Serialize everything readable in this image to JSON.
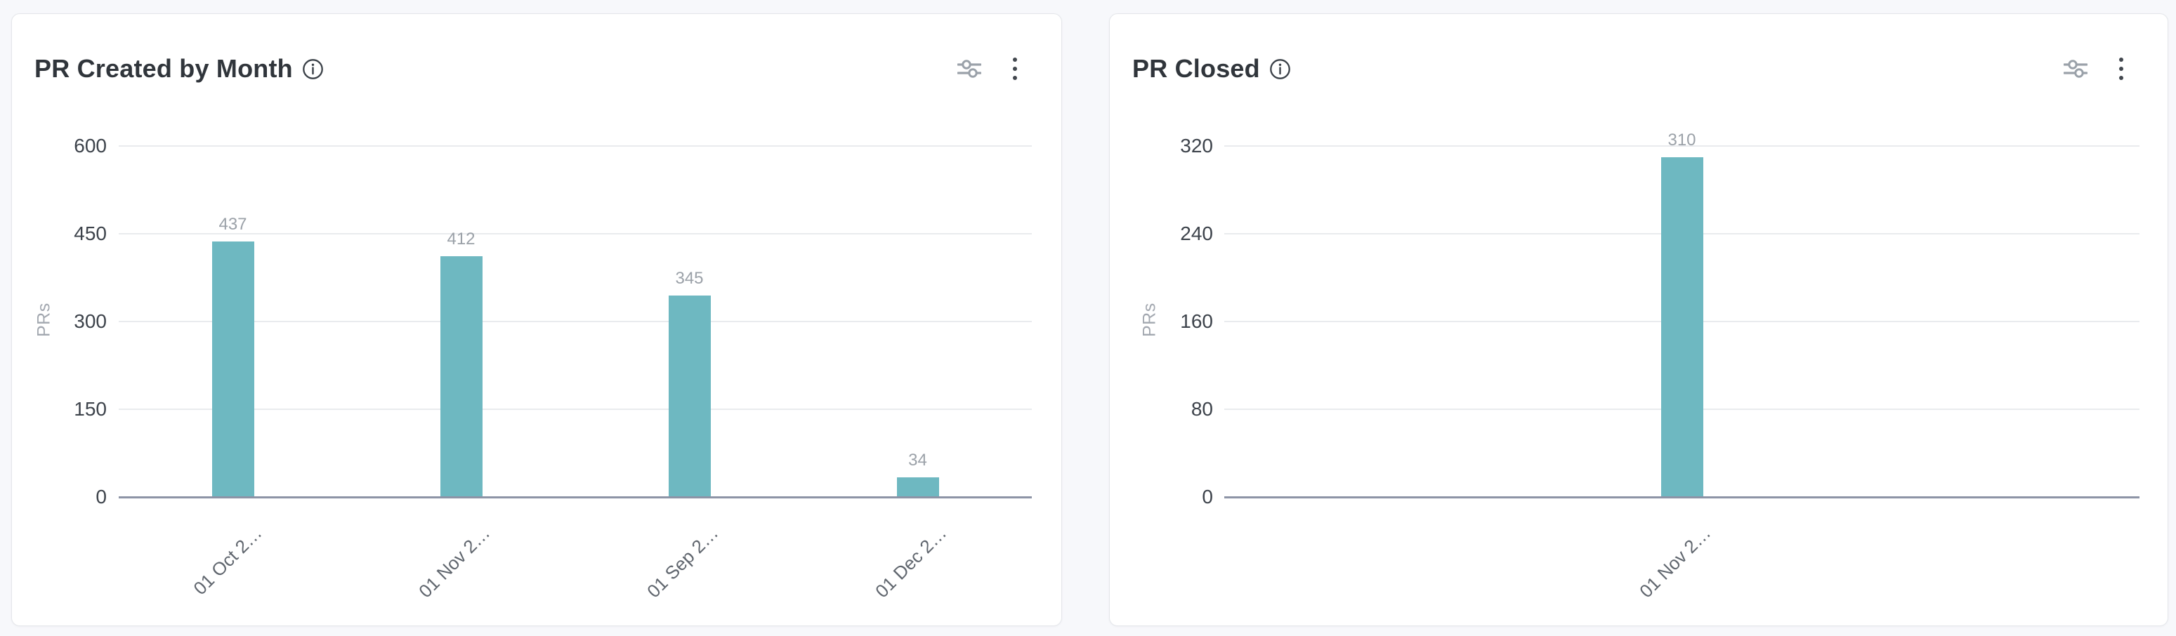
{
  "page": {
    "background": "#f7f8fb"
  },
  "colors": {
    "bar": "#6eb8c1",
    "axis_line": "#8d94a6",
    "gridline": "#e9ebee",
    "tick_label": "#3d434b",
    "value_label": "#9ba1a8",
    "category_label": "#60666e",
    "axis_title": "#a3a8b0",
    "icon_gray": "#9aa1a9",
    "icon_dark": "#42474e"
  },
  "panels": [
    {
      "name": "pr-created-by-month",
      "icons": {
        "info": "info-icon",
        "filter": "filter-sliders-icon",
        "menu": "kebab-menu-icon"
      }
    },
    {
      "name": "pr-closed",
      "icons": {
        "info": "info-icon",
        "filter": "filter-sliders-icon",
        "menu": "kebab-menu-icon"
      }
    }
  ],
  "chart_data": [
    {
      "type": "bar",
      "title": "PR Created by Month",
      "categories": [
        "01 Oct 2…",
        "01 Nov 2…",
        "01 Sep 2…",
        "01 Dec 2…"
      ],
      "values": [
        437,
        412,
        345,
        34
      ],
      "value_labels": [
        "437",
        "412",
        "345",
        "34"
      ],
      "xlabel": "",
      "ylabel": "PRs",
      "ylim": [
        0,
        600
      ],
      "yticks": [
        600,
        450,
        300,
        150,
        0
      ],
      "grid": true,
      "legend": "none",
      "bar_color": "#6eb8c1"
    },
    {
      "type": "bar",
      "title": "PR Closed",
      "categories": [
        "01 Nov 2…"
      ],
      "values": [
        310
      ],
      "value_labels": [
        "310"
      ],
      "xlabel": "",
      "ylabel": "PRs",
      "ylim": [
        0,
        320
      ],
      "yticks": [
        320,
        240,
        160,
        80,
        0
      ],
      "grid": true,
      "legend": "none",
      "bar_color": "#6eb8c1"
    }
  ]
}
